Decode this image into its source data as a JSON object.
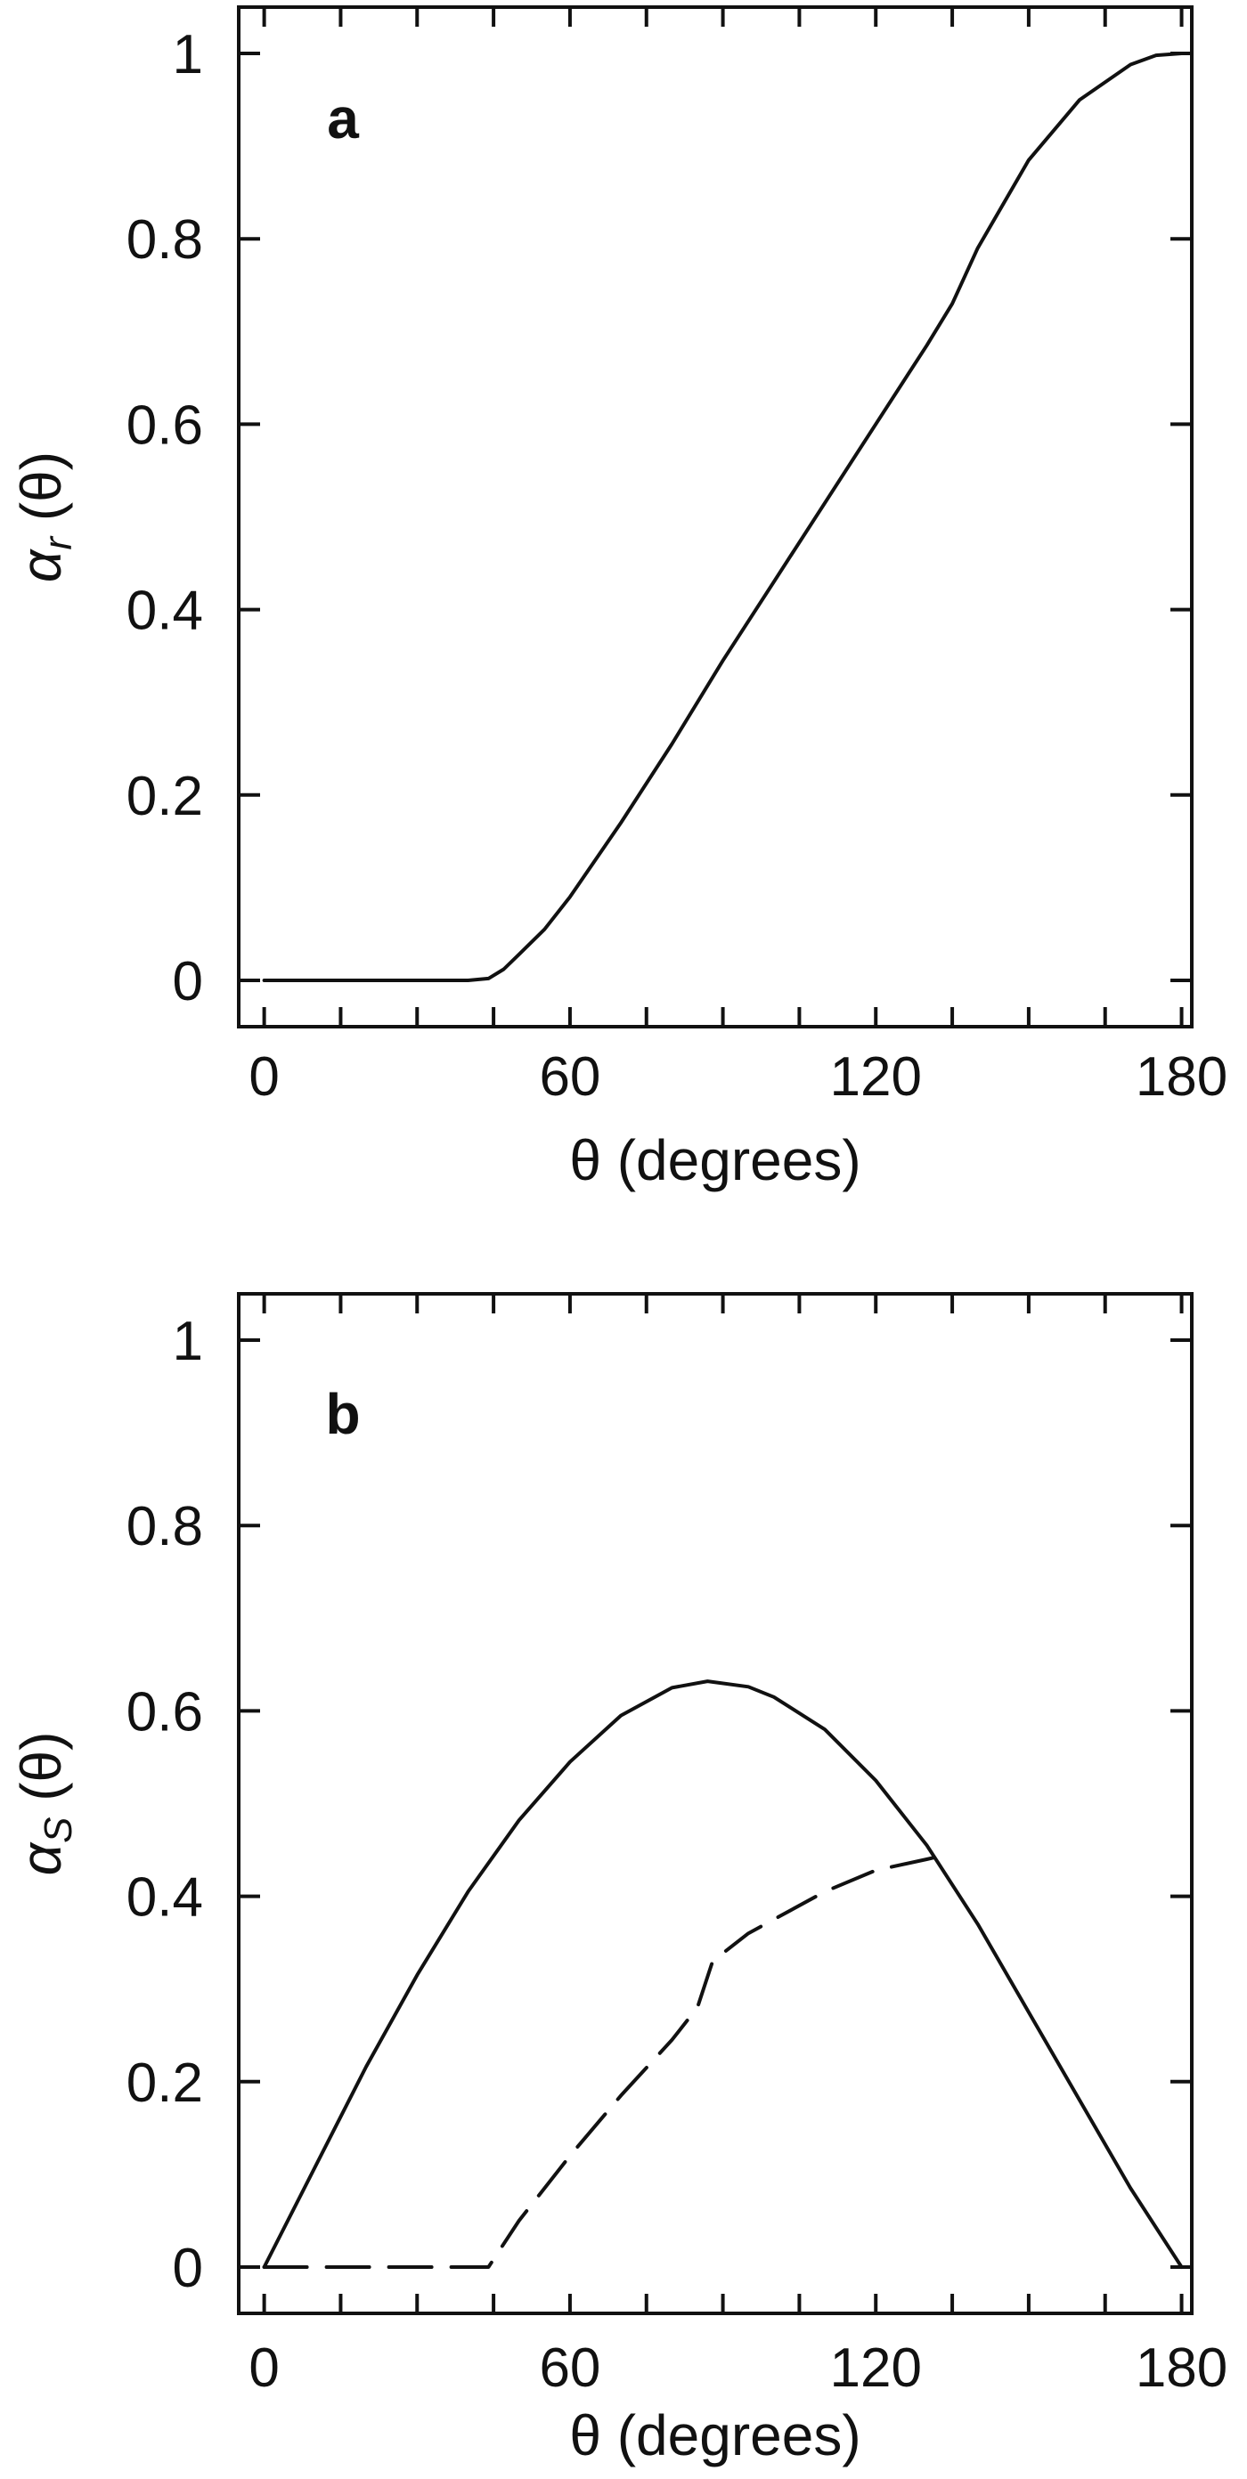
{
  "chart_data": [
    {
      "type": "line",
      "panel_label": "a",
      "xlabel": "θ (degrees)",
      "ylabel": "αr (θ)",
      "ylabel_symbol": "α",
      "ylabel_subscript": "r",
      "ylabel_suffix": "(θ)",
      "xlim": [
        -5,
        182
      ],
      "ylim": [
        -0.05,
        1.05
      ],
      "x_ticks": [
        0,
        60,
        120,
        180
      ],
      "x_minor_ticks": [
        0,
        15,
        30,
        45,
        60,
        75,
        90,
        105,
        120,
        135,
        150,
        165,
        180
      ],
      "y_ticks": [
        0,
        0.2,
        0.4,
        0.6,
        0.8,
        1
      ],
      "x_tick_labels": [
        "0",
        "60",
        "120",
        "180"
      ],
      "y_tick_labels": [
        "0",
        "0.2",
        "0.4",
        "0.6",
        "0.8",
        "1"
      ],
      "grid": false,
      "series": [
        {
          "style": "solid",
          "x": [
            0,
            10,
            20,
            30,
            40,
            44,
            47,
            50,
            55,
            60,
            70,
            80,
            90,
            100,
            110,
            120,
            130,
            135,
            140,
            150,
            160,
            170,
            175,
            180
          ],
          "y": [
            0,
            0,
            0,
            0,
            0,
            0.002,
            0.012,
            0.028,
            0.055,
            0.09,
            0.17,
            0.255,
            0.345,
            0.43,
            0.515,
            0.6,
            0.685,
            0.73,
            0.79,
            0.885,
            0.95,
            0.988,
            0.998,
            1.0
          ]
        }
      ]
    },
    {
      "type": "line",
      "panel_label": "b",
      "xlabel": "θ (degrees)",
      "ylabel": "αS (θ)",
      "ylabel_symbol": "α",
      "ylabel_subscript": "S",
      "ylabel_suffix": "(θ)",
      "xlim": [
        -5,
        182
      ],
      "ylim": [
        -0.05,
        1.05
      ],
      "x_ticks": [
        0,
        60,
        120,
        180
      ],
      "x_minor_ticks": [
        0,
        15,
        30,
        45,
        60,
        75,
        90,
        105,
        120,
        135,
        150,
        165,
        180
      ],
      "y_ticks": [
        0,
        0.2,
        0.4,
        0.6,
        0.8,
        1
      ],
      "x_tick_labels": [
        "0",
        "60",
        "120",
        "180"
      ],
      "y_tick_labels": [
        "0",
        "0.2",
        "0.4",
        "0.6",
        "0.8",
        "1"
      ],
      "grid": false,
      "series": [
        {
          "style": "solid",
          "x": [
            0,
            10,
            20,
            30,
            40,
            50,
            60,
            70,
            80,
            87,
            95,
            100,
            110,
            120,
            130,
            140,
            150,
            160,
            170,
            180
          ],
          "y": [
            0,
            0.108,
            0.216,
            0.315,
            0.405,
            0.482,
            0.545,
            0.595,
            0.625,
            0.632,
            0.626,
            0.615,
            0.58,
            0.525,
            0.455,
            0.37,
            0.275,
            0.18,
            0.085,
            0
          ]
        },
        {
          "style": "dashed",
          "x": [
            0,
            10,
            20,
            30,
            40,
            44,
            50,
            60,
            70,
            80,
            85,
            88,
            95,
            100,
            110,
            120,
            130,
            134
          ],
          "y": [
            0,
            0,
            0,
            0,
            0,
            0,
            0.05,
            0.12,
            0.185,
            0.245,
            0.28,
            0.33,
            0.36,
            0.375,
            0.405,
            0.428,
            0.44,
            0.445
          ]
        }
      ]
    }
  ]
}
